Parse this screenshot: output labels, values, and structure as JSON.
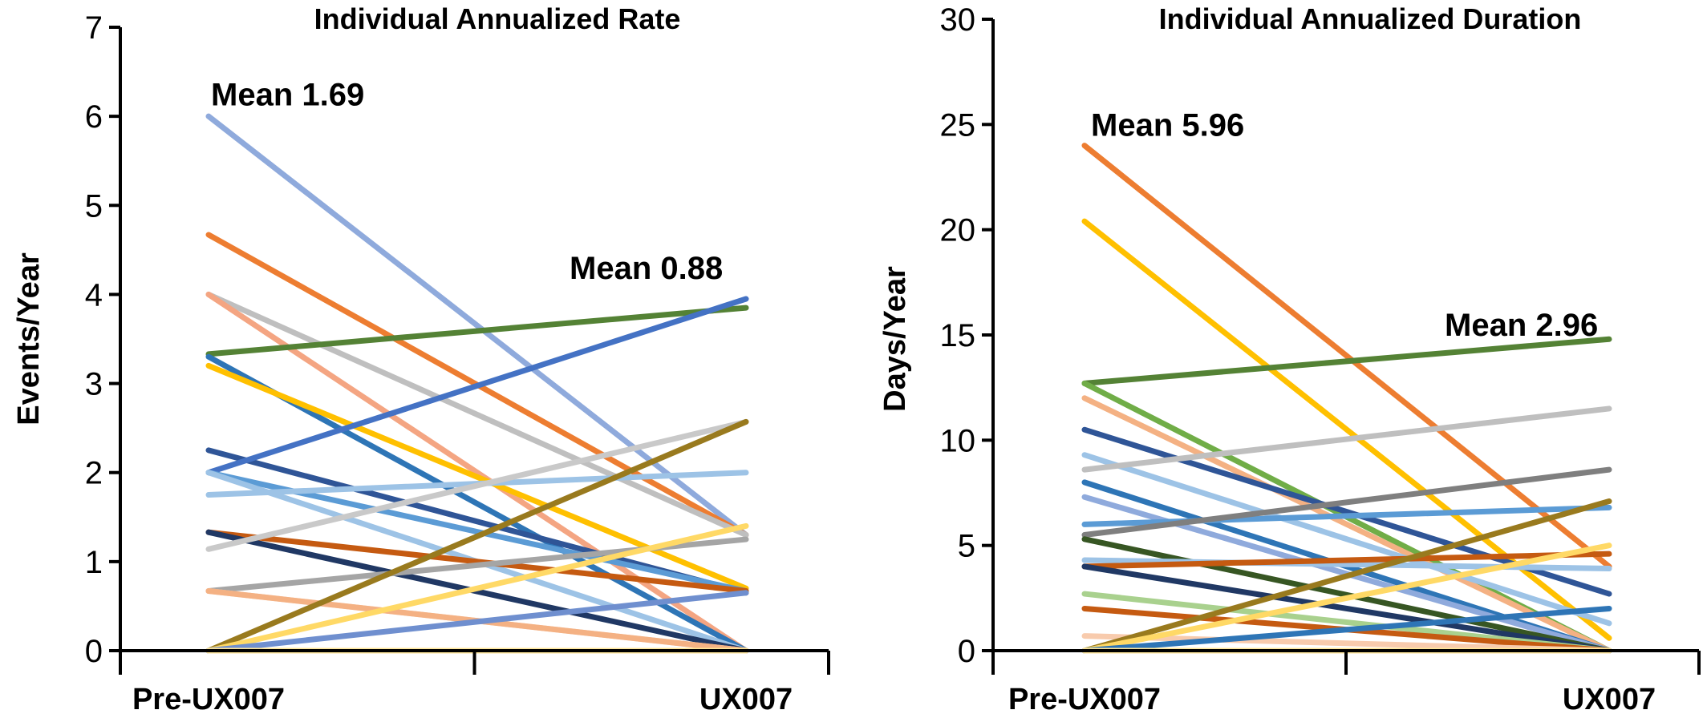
{
  "chart_data": [
    {
      "type": "line",
      "title": "Individual Annualized Rate",
      "ylabel": "Events/Year",
      "xlabel": "",
      "categories": [
        "Pre-UX007",
        "UX007"
      ],
      "ylim": [
        0,
        7
      ],
      "yticks": [
        0,
        1,
        2,
        3,
        4,
        5,
        6,
        7
      ],
      "grid": false,
      "legend": "none",
      "annotations": [
        {
          "text": "Mean 1.69",
          "x": "Pre-UX007",
          "y": 6.25
        },
        {
          "text": "Mean 0.88",
          "x": "UX007",
          "y": 4.3
        }
      ],
      "series": [
        {
          "values": [
            6.0,
            1.3
          ],
          "color": "#8faadc"
        },
        {
          "values": [
            4.67,
            1.3
          ],
          "color": "#ed7d31"
        },
        {
          "values": [
            4.0,
            1.3
          ],
          "color": "#bfbfbf"
        },
        {
          "values": [
            4.0,
            0.0
          ],
          "color": "#f4a582"
        },
        {
          "values": [
            3.33,
            3.85
          ],
          "color": "#548235"
        },
        {
          "values": [
            3.3,
            0.0
          ],
          "color": "#2e75b6"
        },
        {
          "values": [
            3.2,
            0.7
          ],
          "color": "#ffc000"
        },
        {
          "values": [
            2.25,
            0.65
          ],
          "color": "#2f5597"
        },
        {
          "values": [
            2.0,
            3.95
          ],
          "color": "#4472c4"
        },
        {
          "values": [
            2.0,
            0.67
          ],
          "color": "#5b9bd5"
        },
        {
          "values": [
            2.0,
            0.0
          ],
          "color": "#9dc3e6"
        },
        {
          "values": [
            1.75,
            2.0
          ],
          "color": "#9dc3e6"
        },
        {
          "values": [
            1.33,
            0.67
          ],
          "color": "#c55a11"
        },
        {
          "values": [
            1.33,
            0.0
          ],
          "color": "#203864"
        },
        {
          "values": [
            1.14,
            2.57
          ],
          "color": "#c9c9c9"
        },
        {
          "values": [
            0.67,
            1.25
          ],
          "color": "#a5a5a5"
        },
        {
          "values": [
            0.67,
            0.0
          ],
          "color": "#f8cbad"
        },
        {
          "values": [
            0.67,
            0.0
          ],
          "color": "#f4b183"
        },
        {
          "values": [
            0.0,
            2.57
          ],
          "color": "#997a1e"
        },
        {
          "values": [
            0.0,
            1.4
          ],
          "color": "#ffd966"
        },
        {
          "values": [
            0.0,
            0.65
          ],
          "color": "#6f8fcf"
        },
        {
          "values": [
            0.0,
            0.0
          ],
          "color": "#ffe699"
        }
      ]
    },
    {
      "type": "line",
      "title": "Individual Annualized Duration",
      "ylabel": "Days/Year",
      "xlabel": "",
      "categories": [
        "Pre-UX007",
        "UX007"
      ],
      "ylim": [
        0,
        30
      ],
      "yticks": [
        0,
        5,
        10,
        15,
        20,
        25,
        30
      ],
      "grid": false,
      "legend": "none",
      "annotations": [
        {
          "text": "Mean 5.96",
          "x": "Pre-UX007",
          "y": 25.0
        },
        {
          "text": "Mean 2.96",
          "x": "UX007",
          "y": 15.5
        }
      ],
      "series": [
        {
          "values": [
            24.0,
            4.0
          ],
          "color": "#ed7d31"
        },
        {
          "values": [
            20.4,
            0.6
          ],
          "color": "#ffc000"
        },
        {
          "values": [
            12.7,
            14.8
          ],
          "color": "#548235"
        },
        {
          "values": [
            12.7,
            0.0
          ],
          "color": "#70ad47"
        },
        {
          "values": [
            12.0,
            0.0
          ],
          "color": "#f4b183"
        },
        {
          "values": [
            10.5,
            2.7
          ],
          "color": "#2f5597"
        },
        {
          "values": [
            9.3,
            1.3
          ],
          "color": "#9dc3e6"
        },
        {
          "values": [
            8.6,
            11.5
          ],
          "color": "#bfbfbf"
        },
        {
          "values": [
            8.0,
            0.0
          ],
          "color": "#2e75b6"
        },
        {
          "values": [
            7.3,
            0.0
          ],
          "color": "#8faadc"
        },
        {
          "values": [
            6.0,
            6.8
          ],
          "color": "#5b9bd5"
        },
        {
          "values": [
            5.5,
            8.6
          ],
          "color": "#7f7f7f"
        },
        {
          "values": [
            5.3,
            0.0
          ],
          "color": "#375623"
        },
        {
          "values": [
            4.3,
            3.9
          ],
          "color": "#9dc3e6"
        },
        {
          "values": [
            4.0,
            4.6
          ],
          "color": "#c55a11"
        },
        {
          "values": [
            4.0,
            0.0
          ],
          "color": "#203864"
        },
        {
          "values": [
            2.7,
            0.0
          ],
          "color": "#a9d18e"
        },
        {
          "values": [
            2.0,
            0.0
          ],
          "color": "#c55a11"
        },
        {
          "values": [
            0.7,
            0.0
          ],
          "color": "#f8cbad"
        },
        {
          "values": [
            0.0,
            7.1
          ],
          "color": "#997a1e"
        },
        {
          "values": [
            0.0,
            5.0
          ],
          "color": "#ffd966"
        },
        {
          "values": [
            0.0,
            2.0
          ],
          "color": "#2e75b6"
        },
        {
          "values": [
            0.0,
            0.0
          ],
          "color": "#ffe699"
        }
      ]
    }
  ]
}
